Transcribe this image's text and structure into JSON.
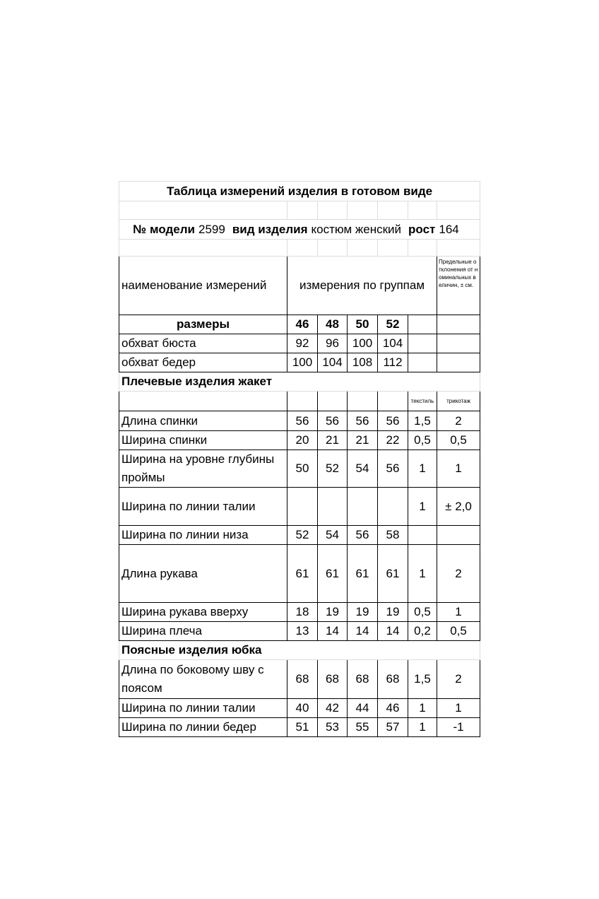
{
  "title": "Таблица измерений изделия в готовом виде",
  "model": {
    "model_label": "№ модели",
    "model_value": "2599",
    "type_label": "вид изделия",
    "type_value": "костюм женский",
    "height_label": "рост",
    "height_value": "164"
  },
  "header": {
    "name": "наименование измерений",
    "groups": "измерения по группам",
    "tolerance": "Предельные отклонения от номинальных величин, ± см."
  },
  "sizes_label": "размеры",
  "sizes": [
    "46",
    "48",
    "50",
    "52"
  ],
  "base_rows": [
    {
      "label": "обхват бюста",
      "values": [
        "92",
        "96",
        "100",
        "104"
      ]
    },
    {
      "label": "обхват бедер",
      "values": [
        "100",
        "104",
        "108",
        "112"
      ]
    }
  ],
  "sections": [
    {
      "title": "Плечевые изделия жакет",
      "tolerance_headers": [
        "текстиль",
        "трикотаж"
      ],
      "rows": [
        {
          "label": "Длина спинки",
          "values": [
            "56",
            "56",
            "56",
            "56"
          ],
          "tolerances": [
            "1,5",
            "2"
          ]
        },
        {
          "label": "Ширина спинки",
          "values": [
            "20",
            "21",
            "21",
            "22"
          ],
          "tolerances": [
            "0,5",
            "0,5"
          ]
        },
        {
          "label": "Ширина на уровне глубины проймы",
          "values": [
            "50",
            "52",
            "54",
            "56"
          ],
          "tolerances": [
            "1",
            "1"
          ]
        },
        {
          "label": "Ширина по линии талии",
          "values": [
            null,
            null,
            null,
            null
          ],
          "tolerances": [
            "1",
            "± 2,0"
          ]
        },
        {
          "label": "Ширина по линии низа",
          "values": [
            "52",
            "54",
            "56",
            "58"
          ],
          "tolerances": [
            null,
            null
          ]
        },
        {
          "label": "Длина рукава",
          "values": [
            "61",
            "61",
            "61",
            "61"
          ],
          "tolerances": [
            "1",
            "2"
          ]
        },
        {
          "label": "Ширина рукава вверху",
          "values": [
            "18",
            "19",
            "19",
            "19"
          ],
          "tolerances": [
            "0,5",
            "1"
          ]
        },
        {
          "label": "Ширина плеча",
          "values": [
            "13",
            "14",
            "14",
            "14"
          ],
          "tolerances": [
            "0,2",
            "0,5"
          ]
        }
      ]
    },
    {
      "title": "Поясные изделия юбка",
      "rows": [
        {
          "label": "Длина по боковому шву с поясом",
          "values": [
            "68",
            "68",
            "68",
            "68"
          ],
          "tolerances": [
            "1,5",
            "2"
          ]
        },
        {
          "label": "Ширина по линии талии",
          "values": [
            "40",
            "42",
            "44",
            "46"
          ],
          "tolerances": [
            "1",
            "1"
          ]
        },
        {
          "label": "Ширина по линии бедер",
          "values": [
            "51",
            "53",
            "55",
            "57"
          ],
          "tolerances": [
            "1",
            "-1"
          ]
        }
      ]
    }
  ]
}
